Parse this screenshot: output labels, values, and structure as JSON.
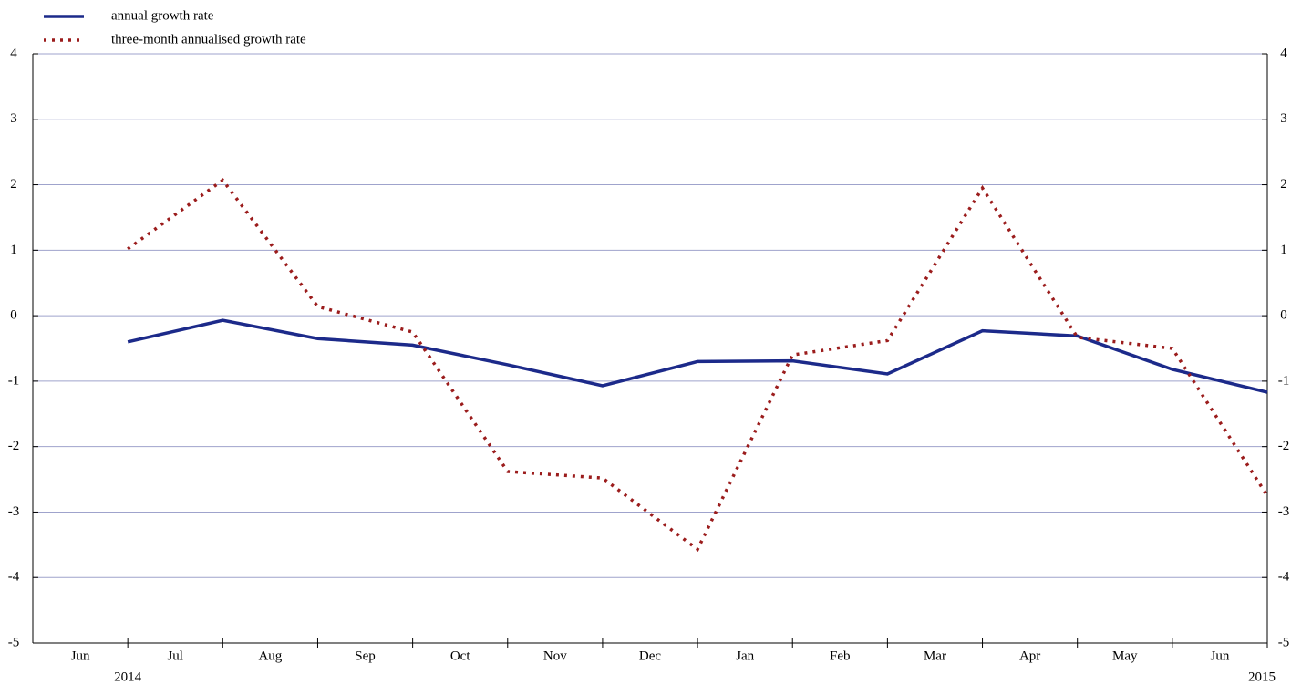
{
  "chart_data": {
    "type": "line",
    "categories": [
      "Jun",
      "Jul",
      "Aug",
      "Sep",
      "Oct",
      "Nov",
      "Dec",
      "Jan",
      "Feb",
      "Mar",
      "Apr",
      "May",
      "Jun"
    ],
    "year_labels": [
      "2014",
      "2015"
    ],
    "series": [
      {
        "name": "annual growth rate",
        "color": "#1c2a8a",
        "style": "solid",
        "values": [
          -0.4,
          -0.07,
          -0.35,
          -0.45,
          -0.75,
          -1.07,
          -0.7,
          -0.69,
          -0.89,
          -0.23,
          -0.31,
          -0.82,
          -1.17
        ]
      },
      {
        "name": "three-month annualised growth rate",
        "color": "#9b1c1c",
        "style": "dotted",
        "values": [
          1.02,
          2.07,
          0.14,
          -0.25,
          -2.38,
          -2.48,
          -3.57,
          -0.6,
          -0.38,
          1.95,
          -0.33,
          -0.5,
          -2.75
        ]
      }
    ],
    "ylim": [
      -5,
      4
    ],
    "yticks": [
      -5,
      -4,
      -3,
      -2,
      -1,
      0,
      1,
      2,
      3,
      4
    ],
    "y2lim": [
      -5,
      4
    ],
    "y2ticks": [
      -5,
      -4,
      -3,
      -2,
      -1,
      0,
      1,
      2,
      3,
      4
    ],
    "grid": true
  }
}
